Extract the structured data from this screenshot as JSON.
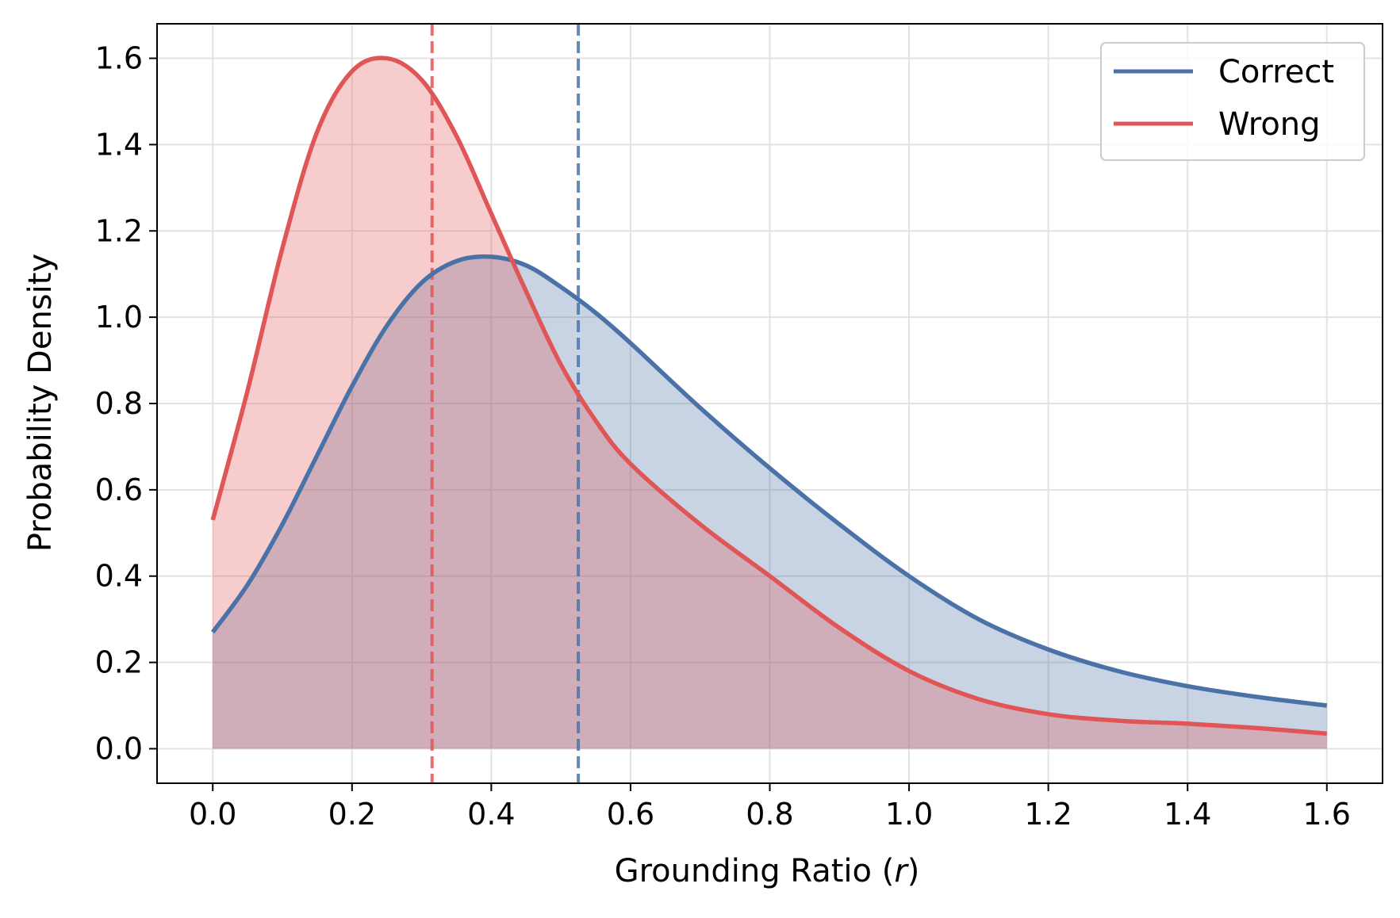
{
  "chart_data": {
    "type": "line",
    "xlabel": "Grounding Ratio (",
    "xlabel_var": "r",
    "xlabel_end": ")",
    "ylabel": "Probability Density",
    "xlim": [
      -0.08,
      1.68
    ],
    "ylim": [
      -0.08,
      1.68
    ],
    "x_ticks": [
      0.0,
      0.2,
      0.4,
      0.6,
      0.8,
      1.0,
      1.2,
      1.4,
      1.6
    ],
    "x_tick_labels": [
      "0.0",
      "0.2",
      "0.4",
      "0.6",
      "0.8",
      "1.0",
      "1.2",
      "1.4",
      "1.6"
    ],
    "y_ticks": [
      0.0,
      0.2,
      0.4,
      0.6,
      0.8,
      1.0,
      1.2,
      1.4,
      1.6
    ],
    "y_tick_labels": [
      "0.0",
      "0.2",
      "0.4",
      "0.6",
      "0.8",
      "1.0",
      "1.2",
      "1.4",
      "1.6"
    ],
    "grid": true,
    "legend_position": "top-right",
    "series": [
      {
        "name": "Correct",
        "color": "#4a72a6",
        "fill": true,
        "mean_line_x": 0.525,
        "x": [
          0.0,
          0.05,
          0.1,
          0.15,
          0.2,
          0.25,
          0.3,
          0.35,
          0.4,
          0.45,
          0.5,
          0.55,
          0.6,
          0.7,
          0.8,
          0.9,
          1.0,
          1.1,
          1.2,
          1.3,
          1.4,
          1.5,
          1.6
        ],
        "y": [
          0.27,
          0.38,
          0.52,
          0.68,
          0.84,
          0.98,
          1.08,
          1.13,
          1.14,
          1.12,
          1.07,
          1.01,
          0.94,
          0.79,
          0.65,
          0.52,
          0.4,
          0.3,
          0.23,
          0.18,
          0.145,
          0.12,
          0.1
        ]
      },
      {
        "name": "Wrong",
        "color": "#e05555",
        "fill": true,
        "mean_line_x": 0.315,
        "x": [
          0.0,
          0.05,
          0.1,
          0.15,
          0.2,
          0.25,
          0.3,
          0.35,
          0.4,
          0.45,
          0.5,
          0.55,
          0.6,
          0.7,
          0.8,
          0.9,
          1.0,
          1.1,
          1.2,
          1.3,
          1.4,
          1.5,
          1.6
        ],
        "y": [
          0.53,
          0.83,
          1.16,
          1.43,
          1.57,
          1.6,
          1.55,
          1.42,
          1.24,
          1.06,
          0.89,
          0.76,
          0.66,
          0.52,
          0.4,
          0.28,
          0.18,
          0.115,
          0.08,
          0.065,
          0.058,
          0.048,
          0.035
        ]
      }
    ]
  }
}
